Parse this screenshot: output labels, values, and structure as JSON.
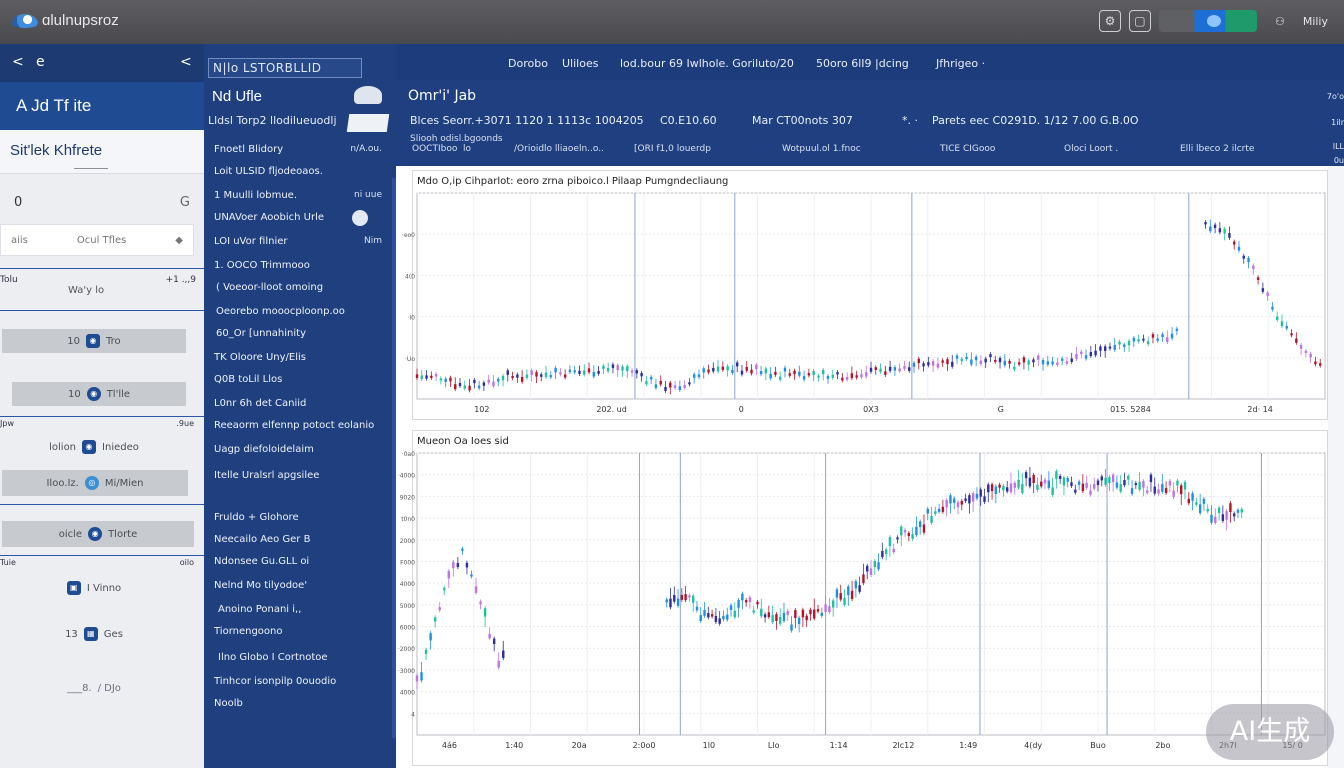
{
  "topbar": {
    "app_name": "ɑlulnupsroz",
    "user_label": "Miliy",
    "icons": [
      "logo-icon",
      "settings-icon",
      "window-icon",
      "toggle-switch-icon",
      "user-icon"
    ]
  },
  "left_panel": {
    "nav_back": "<",
    "nav_label": "e",
    "nav_collapse": "<",
    "title": "A Jd Tf ite",
    "subtitle": "Sit'lek Khfrete",
    "control_left": "0",
    "control_right": "G",
    "search_placeholder_a": "aiis",
    "search_placeholder_b": "Ocul Tfles",
    "section1_left": "Tolu",
    "section1_right": "+1 .,,9",
    "section1_center": "Wa'y lo",
    "tree": [
      {
        "label": "Tro",
        "num": "10"
      },
      {
        "label": "Tl'lle",
        "num": "10"
      }
    ],
    "section2_left": "Jpw",
    "section2_right": ".9ue",
    "tree2": [
      {
        "label": "Iniedeo",
        "num": "lolion"
      },
      {
        "label": "Mi/Mien",
        "num": "Iloo.Iz."
      },
      {
        "label": "Tlorte",
        "num": "oicle"
      }
    ],
    "section3_left": "Tuie",
    "section3_right": "oilo",
    "tree3": [
      {
        "label": "I Vinno",
        "num": ""
      },
      {
        "label": "Ges",
        "num": "13"
      },
      {
        "label": "/ DJo",
        "num": "___8."
      }
    ]
  },
  "menu": {
    "tag": "N|lo  ԼSTORBLLID",
    "title": "Nd Ufle",
    "subtitle": "Lldsl  Torp2 llodilueuodlj",
    "items": [
      {
        "label": "Fnoetl Blidory",
        "side": "n/A.ou."
      },
      {
        "label": "Loit ULSID fljodeoaos.",
        "side": ""
      },
      {
        "label": "1 Muulli lobmue.",
        "side": "ni uue"
      },
      {
        "label": "UNAVoer Aoobich  Urle",
        "side": ""
      },
      {
        "label": "LOI  uVor filnier",
        "side": "Nim"
      },
      {
        "label": "1. OOCO Trimmooo",
        "side": ""
      },
      {
        "label": "( Voeoor-lloot omoing",
        "side": ""
      },
      {
        "label": "Oeorebo mooocploonp.oo",
        "side": ""
      },
      {
        "label": "60_Or [unnahinity",
        "side": ""
      },
      {
        "label": "TK Oloore Uny/Elis",
        "side": ""
      },
      {
        "label": "Q0B toLil Llos",
        "side": ""
      },
      {
        "label": "L0nr 6h det  Caniid",
        "side": ""
      },
      {
        "label": "Reeaorm elfennp potoct eolanio",
        "side": ""
      },
      {
        "label": "Uagp diefoloidelaim",
        "side": ""
      },
      {
        "label": "Itelle Uralsrl apgsilee",
        "side": ""
      },
      {
        "label": "Fruldo + Glohore",
        "side": ""
      },
      {
        "label": "Neecailo Aeo Ger B",
        "side": ""
      },
      {
        "label": "Ndonsee Gu.GLL oi",
        "side": ""
      },
      {
        "label": "Nelnd Mo tilyodoe'",
        "side": ""
      },
      {
        "label": "Anoino Ponani i,,",
        "side": ""
      },
      {
        "label": "Tiornengoono",
        "side": ""
      },
      {
        "label": "Ilno Globo I Cortnotoe",
        "side": ""
      },
      {
        "label": "Tinhcor  isonpilp 0ouodio",
        "side": ""
      },
      {
        "label": "Noolb",
        "side": ""
      }
    ]
  },
  "header": {
    "tabs": [
      "Dorobo",
      "Uliloes",
      "lod.bour 69  Iwlhole. Goriluto/20",
      "50oro 6lI9 |dcing",
      "Jfhrigeo  ·"
    ],
    "title": "Omr'i' Jab",
    "row1": [
      "Blces  Seorr.+3071 1120 1 1113c 1004205",
      "C0.E10.60",
      "Mar  CT00nots 307",
      "*.  ·",
      "Parets eec  C0291D. 1/12 7.00 G.B.0O"
    ],
    "row2": [
      "Sliooh odisl.bgoonds",
      "OOCTIboo  lo",
      "/Orioidlo lliaoeln..o..",
      "[ORI f1,0 louerdp",
      "Wotpuul.ol 1.fnoc",
      "TICE CIGooo",
      "Oloci Loort .",
      "Elli lbeco 2 ilcrte"
    ],
    "right_marks": [
      "7o'o",
      "1ilr",
      "ILL",
      "0u"
    ]
  },
  "charts": {
    "top_title": "Mdo O,ip Cihparlot: eoro  zrna piboico.l Pilaap  Pumgndecliaung",
    "top_xticks": [
      "102",
      "202.  ud",
      "0",
      "0X3",
      "G",
      "015. 5284",
      "2d·   14"
    ],
    "top_yticks": [
      "",
      "·eo0",
      "4(0",
      "·I0",
      "·Uo"
    ],
    "bottom_title": "Mueon  Oa  Ioes sid",
    "bottom_xticks": [
      "4á6",
      "1:40",
      "20a",
      "2:0o0",
      "1l0",
      "Llo",
      "1:14",
      "2lc12",
      "1:49",
      "4(dy",
      "Buo",
      "2bo",
      "2h7l",
      "15/ 0"
    ],
    "bottom_yticks": [
      "·0a0",
      "·4000",
      "9020",
      "t0n0",
      "2000",
      "F000",
      "4000",
      "5000",
      "6000",
      "·2000",
      "·3000",
      "4000",
      "4"
    ],
    "chart_data": [
      {
        "type": "line",
        "title": "Mdo O,ip Cihparlot: eoro  zrna piboico.l Pilaap  Pumgndecliaung",
        "x": [
          0,
          5,
          10,
          15,
          20,
          25,
          30,
          35,
          40,
          45,
          50,
          55,
          60,
          65,
          70,
          75,
          80,
          85,
          90,
          95,
          100,
          105,
          110,
          115,
          120,
          125,
          130,
          135,
          140,
          145,
          150,
          155,
          160,
          165,
          170,
          175,
          180,
          185,
          190
        ],
        "series": [
          {
            "values": [
              12,
              10,
              7,
              8,
              11,
              12,
              13,
              14,
              15,
              13,
              8,
              5,
              14,
              15,
              14,
              12,
              13,
              11,
              12,
              14,
              15,
              16,
              18,
              20,
              19,
              16,
              18,
              19,
              22,
              24,
              28,
              30,
              32,
              0,
              0,
              0,
              0,
              0,
              0
            ]
          },
          {
            "values": [
              0,
              0,
              0,
              0,
              0,
              0,
              0,
              0,
              0,
              0,
              0,
              0,
              0,
              0,
              0,
              0,
              0,
              0,
              0,
              0,
              0,
              0,
              0,
              0,
              0,
              0,
              0,
              0,
              0,
              0,
              0,
              0,
              0,
              85,
              80,
              62,
              40,
              25,
              15
            ]
          }
        ],
        "ylim": [
          0,
          100
        ]
      },
      {
        "type": "line",
        "title": "Mueon  Oa  Ioes sid",
        "series": [
          {
            "x": [
              0,
              4,
              8,
              12,
              16,
              20,
              24,
              28,
              32,
              36,
              40
            ],
            "values": [
              20,
              32,
              45,
              58,
              65,
              70,
              62,
              52,
              40,
              28,
              38
            ]
          },
          {
            "x": [
              110,
              115,
              120,
              125,
              130,
              135,
              140,
              145,
              150,
              155,
              160,
              165,
              170,
              175,
              180,
              185
            ],
            "values": [
              50,
              55,
              52,
              48,
              47,
              46,
              50,
              51,
              49,
              47,
              46,
              45,
              44,
              47,
              50,
              52
            ]
          },
          {
            "x": [
              185,
              195,
              205,
              215,
              225,
              235,
              245,
              255,
              265,
              275,
              285,
              295,
              305,
              315,
              325,
              335,
              345,
              355,
              365
            ],
            "values": [
              52,
              60,
              70,
              78,
              85,
              90,
              92,
              95,
              98,
              99,
              98,
              97,
              99,
              98,
              97,
              96,
              90,
              85,
              88
            ]
          }
        ],
        "ylim": [
          0,
          110
        ]
      }
    ]
  },
  "watermark": "AI生成",
  "colors": {
    "topbar": "#56565a",
    "navy": "#1f3f80",
    "accent_blue": "#1d6fd6",
    "accent_green": "#1f9a6a",
    "candle_up": "#1f8fe0",
    "candle_down": "#b3122a",
    "candle_alt": "#c071e6"
  }
}
